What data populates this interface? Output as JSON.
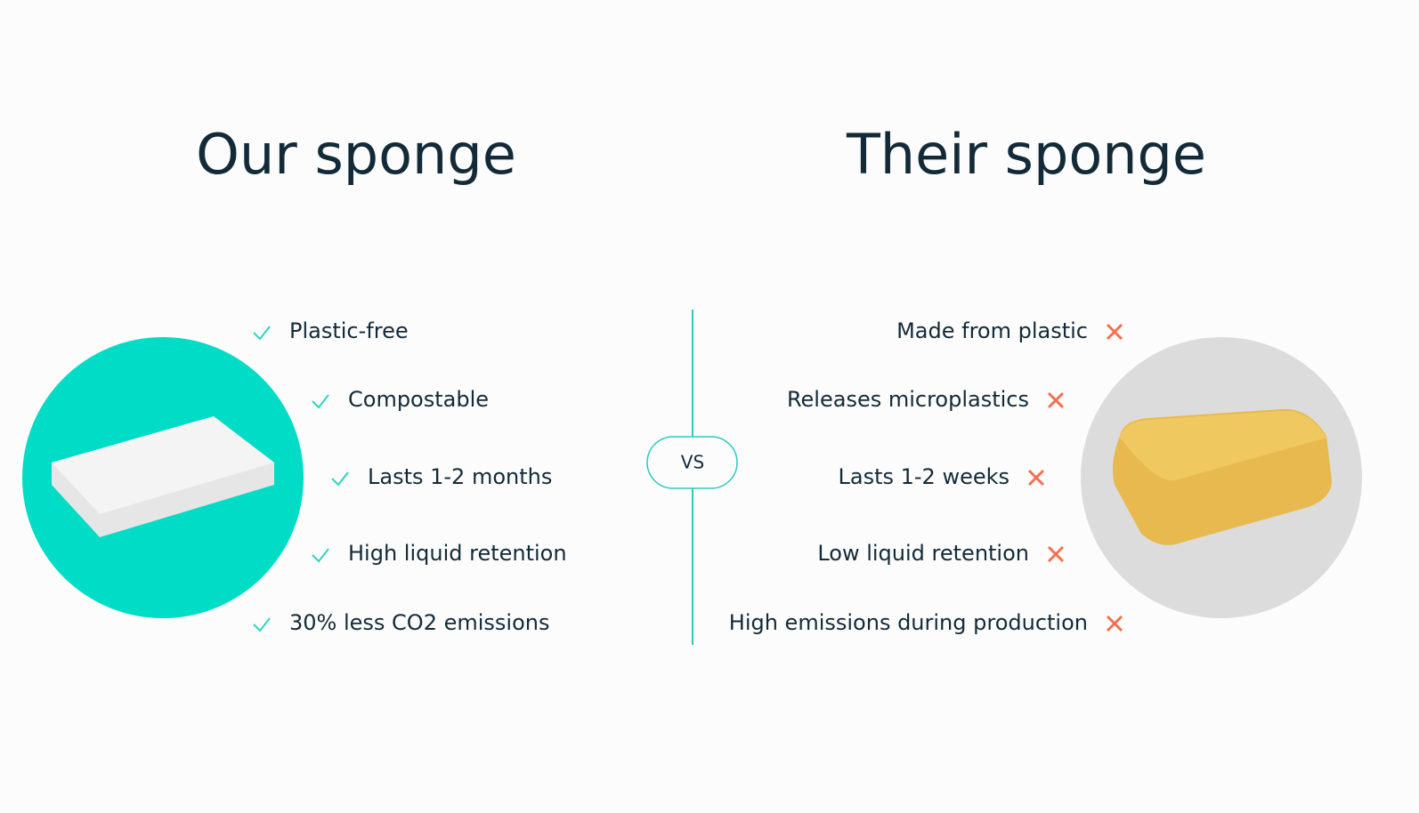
{
  "ours": {
    "title": "Our sponge",
    "items": [
      "Plastic-free",
      "Compostable",
      "Lasts 1-2 months",
      "High liquid retention",
      "30% less CO2 emissions"
    ]
  },
  "theirs": {
    "title": "Their sponge",
    "items": [
      "Made from plastic",
      "Releases microplastics",
      "Lasts 1-2 weeks",
      "Low liquid retention",
      "High emissions during production"
    ]
  },
  "vs": "VS"
}
